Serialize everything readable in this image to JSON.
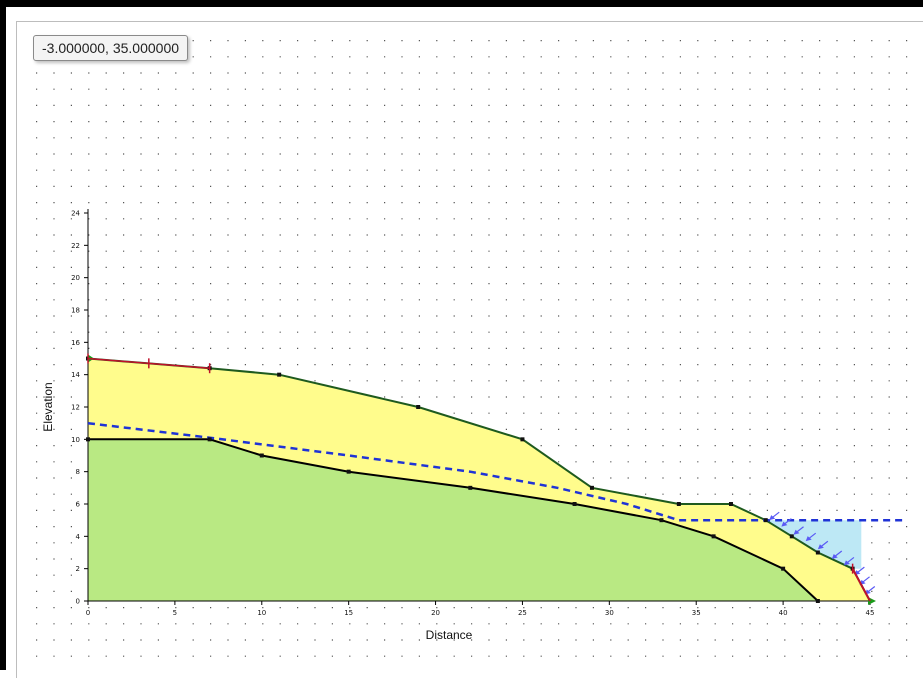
{
  "coordinate_readout": "-3.000000, 35.000000",
  "chart_data": {
    "type": "diagram",
    "xlabel": "Distance",
    "ylabel": "Elevation",
    "xlim": [
      0,
      45
    ],
    "ylim": [
      0,
      24
    ],
    "x_ticks": [
      0,
      5,
      10,
      15,
      20,
      25,
      30,
      35,
      40,
      45
    ],
    "y_ticks": [
      0,
      2,
      4,
      6,
      8,
      10,
      12,
      14,
      16,
      18,
      20,
      22,
      24
    ],
    "grid": "dotted",
    "ground_surface": [
      [
        0,
        15
      ],
      [
        7,
        14.4
      ],
      [
        11,
        14
      ],
      [
        19,
        12
      ],
      [
        25,
        10
      ],
      [
        29,
        7
      ],
      [
        34,
        6
      ],
      [
        37,
        6
      ],
      [
        39,
        5
      ],
      [
        40.5,
        4
      ],
      [
        42,
        3
      ],
      [
        44,
        2
      ],
      [
        45,
        0
      ]
    ],
    "material_boundary": [
      [
        0,
        10
      ],
      [
        7,
        10
      ],
      [
        10,
        9
      ],
      [
        15,
        8
      ],
      [
        22,
        7
      ],
      [
        28,
        6
      ],
      [
        33,
        5
      ],
      [
        36,
        4
      ],
      [
        40,
        2
      ],
      [
        42,
        0
      ]
    ],
    "water_table": [
      [
        0,
        11
      ],
      [
        7,
        10.1
      ],
      [
        15,
        9
      ],
      [
        22,
        8
      ],
      [
        27,
        7
      ],
      [
        31,
        6
      ],
      [
        34,
        5
      ],
      [
        39,
        5
      ],
      [
        47,
        5
      ]
    ],
    "ponded_water": [
      [
        39,
        5
      ],
      [
        44.5,
        5
      ],
      [
        44.5,
        2
      ],
      [
        44,
        2
      ],
      [
        42,
        3
      ],
      [
        40.5,
        4
      ]
    ],
    "colors": {
      "upper_material": "#fffc8c",
      "lower_material": "#b9e983",
      "ground_line": "#1e5a1e",
      "boundary_line": "#000000",
      "water_table": "#1f33d6",
      "ponded_water": "#bde8f5",
      "load_arrows": "#5a5af5",
      "slip_marker": "#c0102a"
    }
  }
}
